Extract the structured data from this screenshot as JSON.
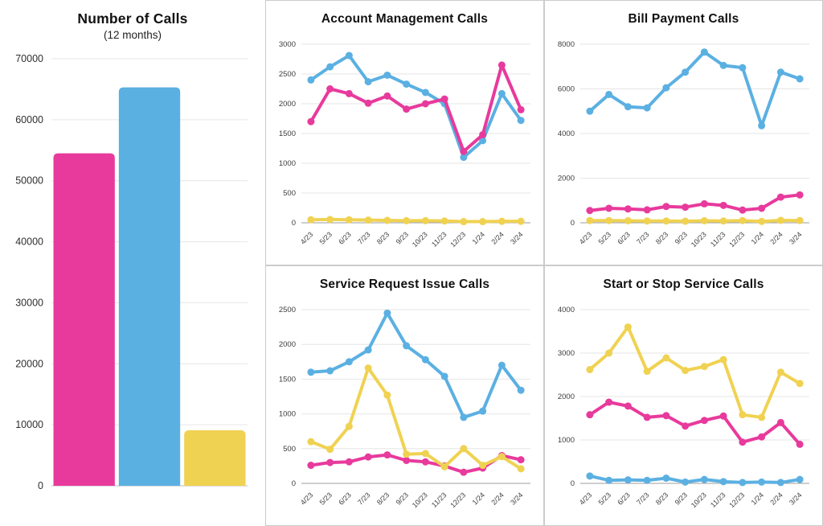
{
  "colors": {
    "pink": "#E83A9C",
    "blue": "#5BB0E2",
    "yellow": "#F0D252",
    "grid": "#e6e6e6",
    "zero_axis": "#9e9e9e",
    "panel_border": "#cccccc",
    "tick_text": "#3d3d3d",
    "title_text": "#111111"
  },
  "months": [
    "4/23",
    "5/23",
    "6/23",
    "7/23",
    "8/23",
    "9/23",
    "10/23",
    "11/23",
    "12/23",
    "1/24",
    "2/24",
    "3/24"
  ],
  "chart_data": [
    {
      "type": "bar",
      "title": "Number of Calls",
      "subtitle": "(12 months)",
      "values": [
        54500,
        65300,
        9100
      ],
      "bar_colors": [
        "#E83A9C",
        "#5BB0E2",
        "#F0D252"
      ],
      "ylim": [
        0,
        70000
      ],
      "yticks": [
        0,
        10000,
        20000,
        30000,
        40000,
        50000,
        60000,
        70000
      ],
      "grid": true,
      "legend": "none",
      "xlabel": "",
      "ylabel": ""
    },
    {
      "type": "line",
      "title": "Account Management Calls",
      "x": [
        "4/23",
        "5/23",
        "6/23",
        "7/23",
        "8/23",
        "9/23",
        "10/23",
        "11/23",
        "12/23",
        "1/24",
        "2/24",
        "3/24"
      ],
      "ylim": [
        0,
        3000
      ],
      "yticks": [
        0,
        500,
        1000,
        1500,
        2000,
        2500,
        3000
      ],
      "grid": true,
      "legend": "none",
      "series": [
        {
          "name": "yellow-series",
          "color": "#F0D252",
          "values": [
            50,
            55,
            50,
            45,
            40,
            35,
            35,
            30,
            20,
            20,
            25,
            25
          ]
        },
        {
          "name": "blue-series",
          "color": "#5BB0E2",
          "values": [
            2400,
            2620,
            2810,
            2370,
            2480,
            2330,
            2190,
            2000,
            1100,
            1380,
            2170,
            1720
          ]
        },
        {
          "name": "pink-series",
          "color": "#E83A9C",
          "values": [
            1700,
            2250,
            2170,
            2010,
            2130,
            1910,
            2000,
            2080,
            1200,
            1480,
            2650,
            1900
          ]
        }
      ]
    },
    {
      "type": "line",
      "title": "Bill Payment Calls",
      "x": [
        "4/23",
        "5/23",
        "6/23",
        "7/23",
        "8/23",
        "9/23",
        "10/23",
        "11/23",
        "12/23",
        "1/24",
        "2/24",
        "3/24"
      ],
      "ylim": [
        0,
        8000
      ],
      "yticks": [
        0,
        2000,
        4000,
        6000,
        8000
      ],
      "grid": true,
      "legend": "none",
      "series": [
        {
          "name": "yellow-series",
          "color": "#F0D252",
          "values": [
            100,
            100,
            90,
            80,
            80,
            70,
            90,
            80,
            100,
            60,
            110,
            100
          ]
        },
        {
          "name": "pink-series",
          "color": "#E83A9C",
          "values": [
            550,
            650,
            620,
            580,
            730,
            700,
            850,
            780,
            570,
            650,
            1150,
            1250
          ]
        },
        {
          "name": "blue-series",
          "color": "#5BB0E2",
          "values": [
            5000,
            5750,
            5200,
            5150,
            6050,
            6750,
            7650,
            7050,
            6950,
            4350,
            6750,
            6450
          ]
        }
      ]
    },
    {
      "type": "line",
      "title": "Service Request Issue Calls",
      "x": [
        "4/23",
        "5/23",
        "6/23",
        "7/23",
        "8/23",
        "9/23",
        "10/23",
        "11/23",
        "12/23",
        "1/24",
        "2/24",
        "3/24"
      ],
      "ylim": [
        0,
        2500
      ],
      "yticks": [
        0,
        500,
        1000,
        1500,
        2000,
        2500
      ],
      "grid": true,
      "legend": "none",
      "series": [
        {
          "name": "blue-series",
          "color": "#5BB0E2",
          "values": [
            1600,
            1620,
            1750,
            1920,
            2450,
            1980,
            1780,
            1540,
            950,
            1040,
            1700,
            1340
          ]
        },
        {
          "name": "pink-series",
          "color": "#E83A9C",
          "values": [
            260,
            300,
            310,
            380,
            410,
            330,
            310,
            250,
            160,
            220,
            400,
            340
          ]
        },
        {
          "name": "yellow-series",
          "color": "#F0D252",
          "values": [
            600,
            490,
            820,
            1660,
            1270,
            420,
            430,
            240,
            500,
            260,
            385,
            210
          ]
        }
      ]
    },
    {
      "type": "line",
      "title": "Start or Stop Service Calls",
      "x": [
        "4/23",
        "5/23",
        "6/23",
        "7/23",
        "8/23",
        "9/23",
        "10/23",
        "11/23",
        "12/23",
        "1/24",
        "2/24",
        "3/24"
      ],
      "ylim": [
        0,
        4000
      ],
      "yticks": [
        0,
        1000,
        2000,
        3000,
        4000
      ],
      "grid": true,
      "legend": "none",
      "series": [
        {
          "name": "blue-series",
          "color": "#5BB0E2",
          "values": [
            170,
            70,
            80,
            70,
            120,
            30,
            90,
            40,
            20,
            30,
            20,
            90
          ]
        },
        {
          "name": "pink-series",
          "color": "#E83A9C",
          "values": [
            1580,
            1870,
            1780,
            1520,
            1560,
            1320,
            1450,
            1550,
            950,
            1070,
            1400,
            900
          ]
        },
        {
          "name": "yellow-series",
          "color": "#F0D252",
          "values": [
            2620,
            3000,
            3600,
            2580,
            2890,
            2600,
            2690,
            2850,
            1580,
            1520,
            2560,
            2300
          ]
        }
      ]
    }
  ]
}
